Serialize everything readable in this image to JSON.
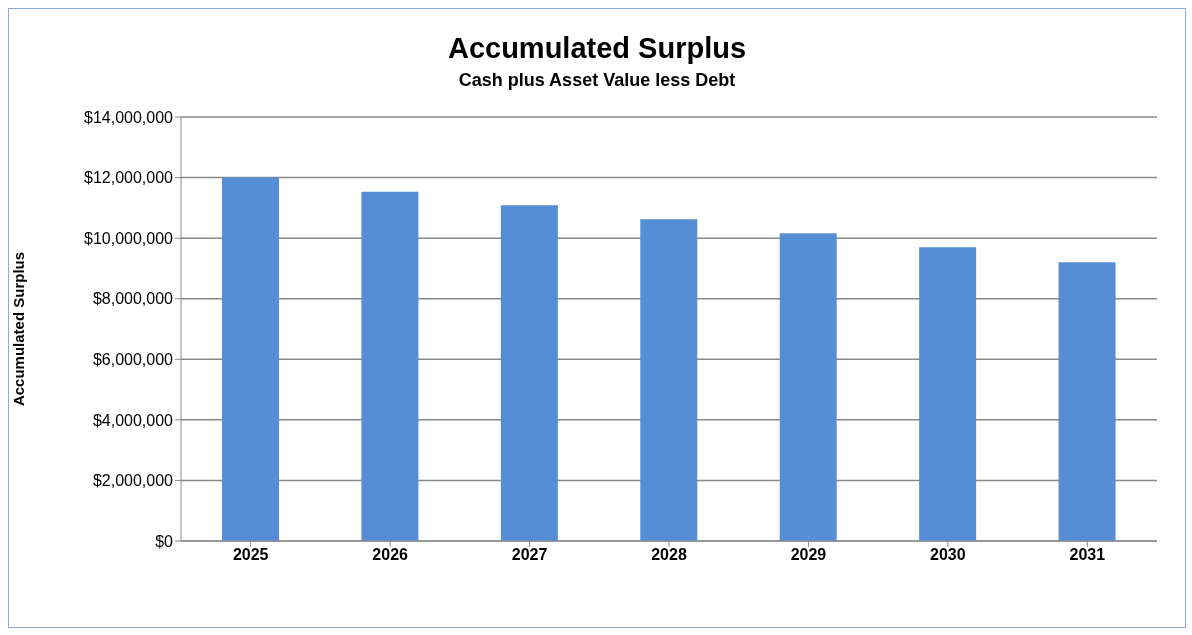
{
  "chart_data": {
    "type": "bar",
    "title": "Accumulated Surplus",
    "subtitle": "Cash plus Asset Value less Debt",
    "ylabel": "Accumulated Surplus",
    "categories": [
      "2025",
      "2026",
      "2027",
      "2028",
      "2029",
      "2030",
      "2031"
    ],
    "values": [
      12000000,
      11530000,
      11090000,
      10620000,
      10160000,
      9700000,
      9200000
    ],
    "color": "#558ed5",
    "ylim": [
      0,
      14000000
    ],
    "yticks": [
      {
        "value": 0,
        "label": "$0"
      },
      {
        "value": 2000000,
        "label": "$2,000,000"
      },
      {
        "value": 4000000,
        "label": "$4,000,000"
      },
      {
        "value": 6000000,
        "label": "$6,000,000"
      },
      {
        "value": 8000000,
        "label": "$8,000,000"
      },
      {
        "value": 10000000,
        "label": "$10,000,000"
      },
      {
        "value": 12000000,
        "label": "$12,000,000"
      },
      {
        "value": 14000000,
        "label": "$14,000,000"
      }
    ],
    "grid": "y",
    "legend": false
  }
}
